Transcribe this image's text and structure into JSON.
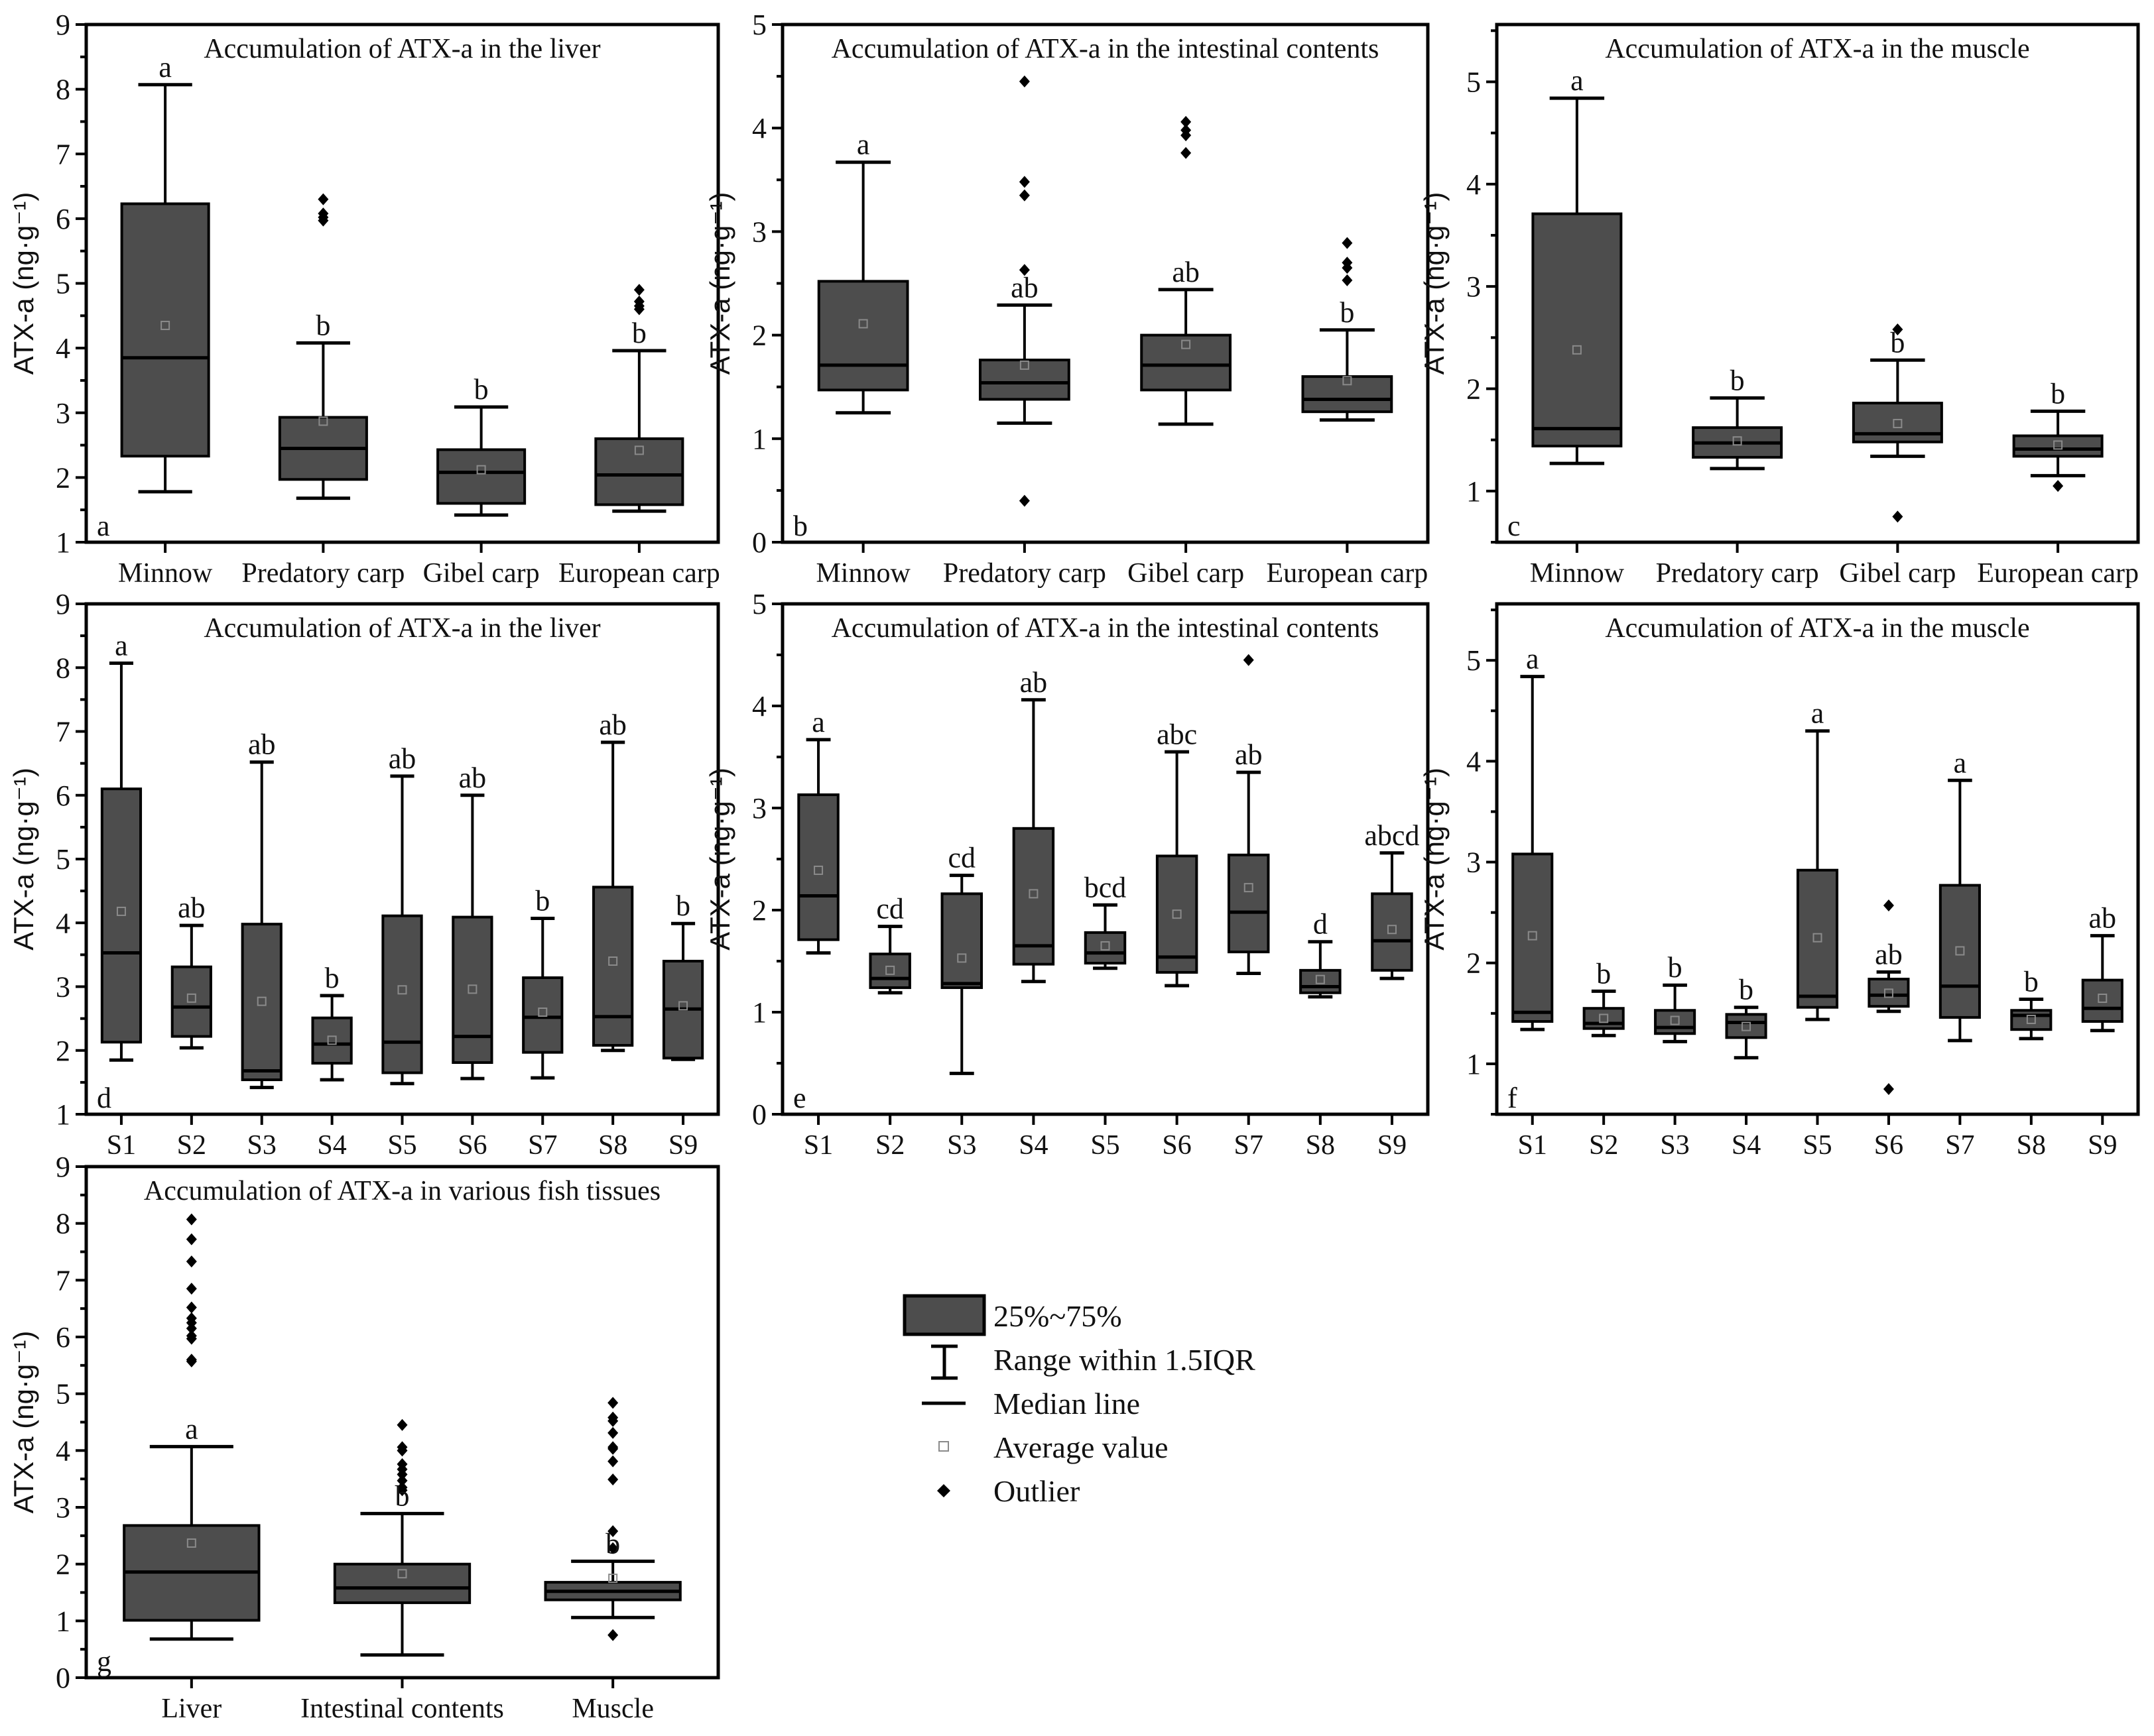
{
  "colors": {
    "box_fill": "#4d4d4d",
    "stroke": "#000000",
    "mean": "#8a8a8a"
  },
  "chart_data": [
    {
      "type": "box",
      "panel_label": "a",
      "title": "Accumulation of ATX-a in the liver",
      "ylabel": "ATX-a (ng·g⁻¹)",
      "ylim": [
        1,
        9
      ],
      "yticks": [
        1,
        2,
        3,
        4,
        5,
        6,
        7,
        8,
        9
      ],
      "categories": [
        "Minnow",
        "Predatory carp",
        "Gibel carp",
        "European carp"
      ],
      "boxes": [
        {
          "whisker_low": 1.78,
          "q1": 2.33,
          "median": 3.85,
          "q3": 6.23,
          "whisker_high": 8.07,
          "mean": 4.35,
          "outliers": [],
          "letter": "a"
        },
        {
          "whisker_low": 1.68,
          "q1": 1.97,
          "median": 2.45,
          "q3": 2.93,
          "whisker_high": 4.08,
          "mean": 2.87,
          "outliers": [
            6.3,
            6.08,
            6.02,
            5.97
          ],
          "letter": "b"
        },
        {
          "whisker_low": 1.42,
          "q1": 1.6,
          "median": 2.08,
          "q3": 2.43,
          "whisker_high": 3.09,
          "mean": 2.12,
          "outliers": [],
          "letter": "b"
        },
        {
          "whisker_low": 1.48,
          "q1": 1.58,
          "median": 2.04,
          "q3": 2.6,
          "whisker_high": 3.96,
          "mean": 2.42,
          "outliers": [
            4.9,
            4.72,
            4.65,
            4.6
          ],
          "letter": "b"
        }
      ]
    },
    {
      "type": "box",
      "panel_label": "b",
      "title": "Accumulation of ATX-a in the intestinal contents",
      "ylabel": "ATX-a (ng·g⁻¹)",
      "ylim": [
        0,
        5
      ],
      "yticks": [
        0,
        1,
        2,
        3,
        4,
        5
      ],
      "categories": [
        "Minnow",
        "Predatory carp",
        "Gibel carp",
        "European carp"
      ],
      "boxes": [
        {
          "whisker_low": 1.25,
          "q1": 1.47,
          "median": 1.71,
          "q3": 2.52,
          "whisker_high": 3.67,
          "mean": 2.11,
          "outliers": [],
          "letter": "a"
        },
        {
          "whisker_low": 1.15,
          "q1": 1.38,
          "median": 1.54,
          "q3": 1.76,
          "whisker_high": 2.29,
          "mean": 1.71,
          "outliers": [
            4.45,
            3.48,
            3.35,
            2.63,
            0.4
          ],
          "letter": "ab"
        },
        {
          "whisker_low": 1.14,
          "q1": 1.47,
          "median": 1.71,
          "q3": 2.0,
          "whisker_high": 2.44,
          "mean": 1.91,
          "outliers": [
            4.06,
            3.98,
            3.93,
            3.76
          ],
          "letter": "ab"
        },
        {
          "whisker_low": 1.18,
          "q1": 1.26,
          "median": 1.38,
          "q3": 1.6,
          "whisker_high": 2.05,
          "mean": 1.56,
          "outliers": [
            2.89,
            2.7,
            2.65,
            2.53
          ],
          "letter": "b"
        }
      ]
    },
    {
      "type": "box",
      "panel_label": "c",
      "title": "Accumulation of ATX-a in the muscle",
      "ylabel": "ATX-a (ng·g⁻¹)",
      "ylim": [
        0.5,
        5.56
      ],
      "yticks": [
        1,
        2,
        3,
        4,
        5
      ],
      "categories": [
        "Minnow",
        "Predatory carp",
        "Gibel carp",
        "European carp"
      ],
      "boxes": [
        {
          "whisker_low": 1.27,
          "q1": 1.44,
          "median": 1.61,
          "q3": 3.71,
          "whisker_high": 4.84,
          "mean": 2.38,
          "outliers": [],
          "letter": "a"
        },
        {
          "whisker_low": 1.22,
          "q1": 1.33,
          "median": 1.47,
          "q3": 1.62,
          "whisker_high": 1.91,
          "mean": 1.49,
          "outliers": [],
          "letter": "b"
        },
        {
          "whisker_low": 1.34,
          "q1": 1.48,
          "median": 1.56,
          "q3": 1.86,
          "whisker_high": 2.28,
          "mean": 1.66,
          "outliers": [
            2.58,
            0.75
          ],
          "letter": "b"
        },
        {
          "whisker_low": 1.15,
          "q1": 1.34,
          "median": 1.41,
          "q3": 1.54,
          "whisker_high": 1.78,
          "mean": 1.45,
          "outliers": [
            1.05
          ],
          "letter": "b"
        }
      ]
    },
    {
      "type": "box",
      "panel_label": "d",
      "title": "Accumulation of ATX-a in the liver",
      "ylabel": "ATX-a (ng·g⁻¹)",
      "ylim": [
        1,
        9
      ],
      "yticks": [
        1,
        2,
        3,
        4,
        5,
        6,
        7,
        8,
        9
      ],
      "categories": [
        "S1",
        "S2",
        "S3",
        "S4",
        "S5",
        "S6",
        "S7",
        "S8",
        "S9"
      ],
      "boxes": [
        {
          "whisker_low": 1.85,
          "q1": 2.13,
          "median": 3.53,
          "q3": 6.1,
          "whisker_high": 8.07,
          "mean": 4.18,
          "outliers": [],
          "letter": "a"
        },
        {
          "whisker_low": 2.04,
          "q1": 2.22,
          "median": 2.68,
          "q3": 3.31,
          "whisker_high": 3.96,
          "mean": 2.82,
          "outliers": [],
          "letter": "ab"
        },
        {
          "whisker_low": 1.42,
          "q1": 1.54,
          "median": 1.68,
          "q3": 3.98,
          "whisker_high": 6.52,
          "mean": 2.77,
          "outliers": [],
          "letter": "ab"
        },
        {
          "whisker_low": 1.54,
          "q1": 1.8,
          "median": 2.1,
          "q3": 2.51,
          "whisker_high": 2.86,
          "mean": 2.16,
          "outliers": [],
          "letter": "b"
        },
        {
          "whisker_low": 1.48,
          "q1": 1.65,
          "median": 2.13,
          "q3": 4.11,
          "whisker_high": 6.3,
          "mean": 2.95,
          "outliers": [],
          "letter": "ab"
        },
        {
          "whisker_low": 1.56,
          "q1": 1.81,
          "median": 2.22,
          "q3": 4.09,
          "whisker_high": 6.0,
          "mean": 2.96,
          "outliers": [],
          "letter": "ab"
        },
        {
          "whisker_low": 1.57,
          "q1": 1.97,
          "median": 2.52,
          "q3": 3.14,
          "whisker_high": 4.07,
          "mean": 2.6,
          "outliers": [],
          "letter": "b"
        },
        {
          "whisker_low": 2.0,
          "q1": 2.08,
          "median": 2.53,
          "q3": 4.56,
          "whisker_high": 6.83,
          "mean": 3.4,
          "outliers": [],
          "letter": "ab"
        },
        {
          "whisker_low": 1.86,
          "q1": 1.88,
          "median": 2.65,
          "q3": 3.4,
          "whisker_high": 3.99,
          "mean": 2.7,
          "outliers": [],
          "letter": "b"
        }
      ]
    },
    {
      "type": "box",
      "panel_label": "e",
      "title": "Accumulation of ATX-a in the intestinal contents",
      "ylabel": "ATX-a (ng·g⁻¹)",
      "ylim": [
        0,
        5
      ],
      "yticks": [
        0,
        1,
        2,
        3,
        4,
        5
      ],
      "categories": [
        "S1",
        "S2",
        "S3",
        "S4",
        "S5",
        "S6",
        "S7",
        "S8",
        "S9"
      ],
      "boxes": [
        {
          "whisker_low": 1.58,
          "q1": 1.71,
          "median": 2.14,
          "q3": 3.13,
          "whisker_high": 3.67,
          "mean": 2.39,
          "outliers": [],
          "letter": "a"
        },
        {
          "whisker_low": 1.19,
          "q1": 1.24,
          "median": 1.33,
          "q3": 1.57,
          "whisker_high": 1.84,
          "mean": 1.41,
          "outliers": [],
          "letter": "cd"
        },
        {
          "whisker_low": 0.4,
          "q1": 1.24,
          "median": 1.28,
          "q3": 2.16,
          "whisker_high": 2.34,
          "mean": 1.53,
          "outliers": [],
          "letter": "cd"
        },
        {
          "whisker_low": 1.3,
          "q1": 1.47,
          "median": 1.65,
          "q3": 2.8,
          "whisker_high": 4.06,
          "mean": 2.16,
          "outliers": [],
          "letter": "ab"
        },
        {
          "whisker_low": 1.43,
          "q1": 1.48,
          "median": 1.58,
          "q3": 1.78,
          "whisker_high": 2.05,
          "mean": 1.65,
          "outliers": [],
          "letter": "bcd"
        },
        {
          "whisker_low": 1.26,
          "q1": 1.39,
          "median": 1.54,
          "q3": 2.53,
          "whisker_high": 3.55,
          "mean": 1.96,
          "outliers": [],
          "letter": "abc"
        },
        {
          "whisker_low": 1.38,
          "q1": 1.59,
          "median": 1.98,
          "q3": 2.54,
          "whisker_high": 3.35,
          "mean": 2.22,
          "outliers": [
            4.45
          ],
          "letter": "ab"
        },
        {
          "whisker_low": 1.15,
          "q1": 1.19,
          "median": 1.25,
          "q3": 1.41,
          "whisker_high": 1.69,
          "mean": 1.32,
          "outliers": [],
          "letter": "d"
        },
        {
          "whisker_low": 1.33,
          "q1": 1.41,
          "median": 1.7,
          "q3": 2.16,
          "whisker_high": 2.56,
          "mean": 1.81,
          "outliers": [],
          "letter": "abcd"
        }
      ]
    },
    {
      "type": "box",
      "panel_label": "f",
      "title": "Accumulation of ATX-a in the muscle",
      "ylabel": "ATX-a (ng·g⁻¹)",
      "ylim": [
        0.5,
        5.56
      ],
      "yticks": [
        1,
        2,
        3,
        4,
        5
      ],
      "categories": [
        "S1",
        "S2",
        "S3",
        "S4",
        "S5",
        "S6",
        "S7",
        "S8",
        "S9"
      ],
      "boxes": [
        {
          "whisker_low": 1.34,
          "q1": 1.42,
          "median": 1.51,
          "q3": 3.08,
          "whisker_high": 4.84,
          "mean": 2.27,
          "outliers": [],
          "letter": "a"
        },
        {
          "whisker_low": 1.28,
          "q1": 1.35,
          "median": 1.4,
          "q3": 1.55,
          "whisker_high": 1.72,
          "mean": 1.45,
          "outliers": [],
          "letter": "b"
        },
        {
          "whisker_low": 1.22,
          "q1": 1.3,
          "median": 1.36,
          "q3": 1.53,
          "whisker_high": 1.78,
          "mean": 1.43,
          "outliers": [],
          "letter": "b"
        },
        {
          "whisker_low": 1.06,
          "q1": 1.26,
          "median": 1.41,
          "q3": 1.49,
          "whisker_high": 1.56,
          "mean": 1.37,
          "outliers": [],
          "letter": "b"
        },
        {
          "whisker_low": 1.44,
          "q1": 1.56,
          "median": 1.67,
          "q3": 2.92,
          "whisker_high": 4.3,
          "mean": 2.25,
          "outliers": [],
          "letter": "a"
        },
        {
          "whisker_low": 1.52,
          "q1": 1.57,
          "median": 1.68,
          "q3": 1.84,
          "whisker_high": 1.91,
          "mean": 1.7,
          "outliers": [
            2.57,
            0.75
          ],
          "letter": "ab"
        },
        {
          "whisker_low": 1.23,
          "q1": 1.46,
          "median": 1.77,
          "q3": 2.77,
          "whisker_high": 3.81,
          "mean": 2.12,
          "outliers": [],
          "letter": "a"
        },
        {
          "whisker_low": 1.25,
          "q1": 1.34,
          "median": 1.48,
          "q3": 1.53,
          "whisker_high": 1.64,
          "mean": 1.44,
          "outliers": [],
          "letter": "b"
        },
        {
          "whisker_low": 1.33,
          "q1": 1.42,
          "median": 1.55,
          "q3": 1.83,
          "whisker_high": 2.27,
          "mean": 1.65,
          "outliers": [],
          "letter": "ab"
        }
      ]
    },
    {
      "type": "box",
      "panel_label": "g",
      "title": "Accumulation of ATX-a in various fish tissues",
      "ylabel": "ATX-a (ng·g⁻¹)",
      "ylim": [
        0,
        9
      ],
      "yticks": [
        0,
        1,
        2,
        3,
        4,
        5,
        6,
        7,
        8,
        9
      ],
      "categories": [
        "Liver",
        "Intestinal contents",
        "Muscle"
      ],
      "boxes": [
        {
          "whisker_low": 0.68,
          "q1": 1.01,
          "median": 1.86,
          "q3": 2.68,
          "whisker_high": 4.07,
          "mean": 2.37,
          "outliers": [
            8.07,
            7.72,
            7.33,
            6.85,
            6.52,
            6.33,
            6.25,
            6.15,
            6.02,
            5.97,
            5.6,
            5.57
          ],
          "letter": "a"
        },
        {
          "whisker_low": 0.4,
          "q1": 1.32,
          "median": 1.58,
          "q3": 2.0,
          "whisker_high": 2.89,
          "mean": 1.83,
          "outliers": [
            4.45,
            4.06,
            4.0,
            3.76,
            3.67,
            3.58,
            3.47,
            3.35,
            3.3
          ],
          "letter": "b"
        },
        {
          "whisker_low": 1.06,
          "q1": 1.37,
          "median": 1.52,
          "q3": 1.68,
          "whisker_high": 2.05,
          "mean": 1.75,
          "outliers": [
            4.84,
            4.58,
            4.52,
            4.31,
            4.06,
            4.03,
            3.81,
            3.49,
            2.58,
            2.28,
            0.75
          ],
          "letter": "b"
        }
      ]
    }
  ],
  "legend": {
    "items": [
      {
        "symbol": "box",
        "label": "25%~75%"
      },
      {
        "symbol": "whisker",
        "label": "Range within 1.5IQR"
      },
      {
        "symbol": "median",
        "label": "Median line"
      },
      {
        "symbol": "mean",
        "label": "Average value"
      },
      {
        "symbol": "outlier",
        "label": "Outlier"
      }
    ]
  }
}
